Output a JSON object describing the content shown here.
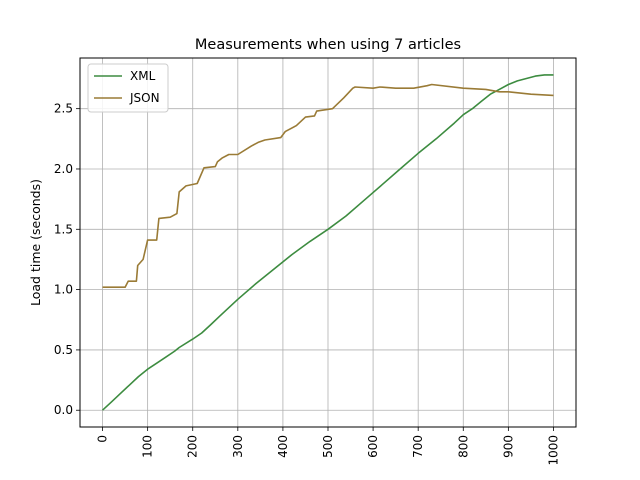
{
  "chart_data": {
    "type": "line",
    "title": "Measurements when using 7 articles",
    "xlabel": "",
    "ylabel": "Load time (seconds)",
    "xlim": [
      -50,
      1050
    ],
    "ylim": [
      -0.139,
      2.92
    ],
    "xticks": [
      0,
      100,
      200,
      300,
      400,
      500,
      600,
      700,
      800,
      900,
      1000
    ],
    "yticks": [
      0.0,
      0.5,
      1.0,
      1.5,
      2.0,
      2.5
    ],
    "ytick_labels": [
      "0.0",
      "0.5",
      "1.0",
      "1.5",
      "2.0",
      "2.5"
    ],
    "grid": true,
    "legend_position": "top-left",
    "series": [
      {
        "name": "XML",
        "color": "#3d8c40",
        "x": [
          0,
          20,
          40,
          60,
          80,
          100,
          120,
          140,
          160,
          170,
          200,
          220,
          240,
          260,
          280,
          300,
          340,
          380,
          420,
          460,
          500,
          540,
          580,
          620,
          660,
          700,
          740,
          780,
          800,
          820,
          840,
          860,
          880,
          900,
          920,
          940,
          960,
          980,
          1000
        ],
        "y": [
          0.0,
          0.07,
          0.14,
          0.21,
          0.28,
          0.34,
          0.39,
          0.44,
          0.49,
          0.52,
          0.59,
          0.64,
          0.71,
          0.78,
          0.85,
          0.92,
          1.05,
          1.17,
          1.29,
          1.4,
          1.5,
          1.61,
          1.74,
          1.87,
          2.0,
          2.13,
          2.25,
          2.38,
          2.45,
          2.5,
          2.56,
          2.62,
          2.66,
          2.7,
          2.73,
          2.75,
          2.77,
          2.78,
          2.78
        ]
      },
      {
        "name": "JSON",
        "color": "#9a7b36",
        "x": [
          0,
          50,
          57,
          75,
          78,
          90,
          100,
          120,
          125,
          150,
          165,
          170,
          185,
          210,
          225,
          250,
          255,
          265,
          280,
          300,
          330,
          345,
          360,
          395,
          405,
          430,
          450,
          470,
          475,
          510,
          535,
          555,
          560,
          600,
          615,
          650,
          690,
          720,
          730,
          800,
          850,
          880,
          900,
          950,
          1000
        ],
        "y": [
          1.02,
          1.02,
          1.07,
          1.07,
          1.2,
          1.25,
          1.41,
          1.41,
          1.59,
          1.6,
          1.63,
          1.81,
          1.86,
          1.88,
          2.01,
          2.02,
          2.06,
          2.09,
          2.12,
          2.12,
          2.19,
          2.22,
          2.24,
          2.26,
          2.31,
          2.36,
          2.43,
          2.44,
          2.48,
          2.5,
          2.59,
          2.67,
          2.68,
          2.67,
          2.68,
          2.67,
          2.67,
          2.69,
          2.7,
          2.67,
          2.66,
          2.64,
          2.64,
          2.62,
          2.61
        ]
      }
    ]
  }
}
